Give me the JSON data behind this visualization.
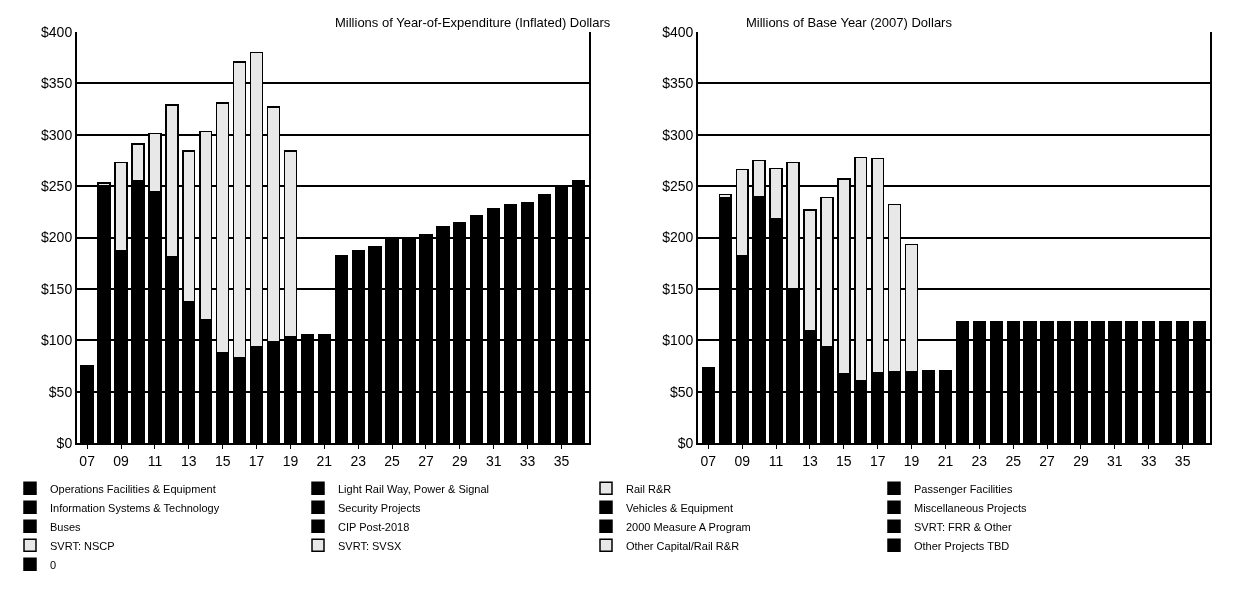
{
  "chart_data": [
    {
      "type": "bar",
      "stacked": true,
      "title": "Millions of Year-of-Expenditure (Inflated) Dollars",
      "categories": [
        "07",
        null,
        "09",
        null,
        "11",
        null,
        "13",
        null,
        "15",
        null,
        "17",
        null,
        "19",
        null,
        "21",
        null,
        "23",
        null,
        "25",
        null,
        "27",
        null,
        "29",
        null,
        "31",
        null,
        "33",
        null,
        "35",
        null
      ],
      "ylim": [
        0,
        400
      ],
      "yticks": [
        {
          "value": 0,
          "label": "$0"
        },
        {
          "value": 50,
          "label": "$50"
        },
        {
          "value": 100,
          "label": "$100"
        },
        {
          "value": 150,
          "label": "$150"
        },
        {
          "value": 200,
          "label": "$200"
        },
        {
          "value": 250,
          "label": "$250"
        },
        {
          "value": 300,
          "label": "$300"
        },
        {
          "value": 350,
          "label": "$350"
        },
        {
          "value": 400,
          "label": "$400"
        }
      ],
      "grid": "y",
      "legend": "bottom",
      "series": [
        {
          "name": "Operations Facilities & Equipment",
          "color": "#000000",
          "values": [
            null,
            null,
            null,
            null,
            null,
            null,
            null,
            null,
            null,
            null,
            null,
            null,
            null,
            null,
            null,
            null,
            null,
            null,
            null,
            null,
            null,
            null,
            null,
            null,
            null,
            null,
            null,
            null,
            null,
            null
          ]
        },
        {
          "name": "Light Rail Way, Power & Signal",
          "color": "#000000",
          "values": [
            null,
            null,
            null,
            null,
            null,
            null,
            null,
            null,
            null,
            null,
            null,
            null,
            null,
            null,
            null,
            null,
            null,
            null,
            null,
            null,
            null,
            null,
            null,
            null,
            null,
            null,
            null,
            null,
            null,
            null
          ]
        },
        {
          "name": "Rail R&R",
          "color": "#e8e8e8",
          "values": [
            null,
            null,
            null,
            null,
            null,
            null,
            null,
            null,
            null,
            null,
            null,
            null,
            null,
            null,
            null,
            null,
            null,
            null,
            null,
            null,
            null,
            null,
            null,
            null,
            null,
            null,
            null,
            null,
            null,
            null
          ]
        },
        {
          "name": "Passenger Facilities",
          "color": "#000000",
          "values": [
            null,
            null,
            null,
            null,
            null,
            null,
            null,
            null,
            null,
            null,
            null,
            null,
            null,
            null,
            null,
            null,
            null,
            null,
            null,
            null,
            null,
            null,
            null,
            null,
            null,
            null,
            null,
            null,
            null,
            null
          ]
        },
        {
          "name": "Information Systems & Technology",
          "color": "#000000",
          "values": [
            null,
            null,
            null,
            null,
            null,
            null,
            null,
            null,
            null,
            null,
            null,
            null,
            null,
            null,
            null,
            null,
            null,
            null,
            null,
            null,
            null,
            null,
            null,
            null,
            null,
            null,
            null,
            null,
            null,
            null
          ]
        },
        {
          "name": "Security Projects",
          "color": "#000000",
          "values": [
            null,
            null,
            null,
            null,
            null,
            null,
            null,
            null,
            null,
            null,
            null,
            null,
            null,
            null,
            null,
            null,
            null,
            null,
            null,
            null,
            null,
            null,
            null,
            null,
            null,
            null,
            null,
            null,
            null,
            null
          ]
        },
        {
          "name": "Vehicles & Equipment",
          "color": "#000000",
          "values": [
            null,
            null,
            null,
            null,
            null,
            null,
            null,
            null,
            null,
            null,
            null,
            null,
            null,
            null,
            null,
            null,
            null,
            null,
            null,
            null,
            null,
            null,
            null,
            null,
            null,
            null,
            null,
            null,
            null,
            null
          ]
        },
        {
          "name": "Miscellaneous Projects",
          "color": "#000000",
          "values": [
            null,
            null,
            null,
            null,
            null,
            null,
            null,
            null,
            null,
            null,
            null,
            null,
            null,
            null,
            null,
            null,
            null,
            null,
            null,
            null,
            null,
            null,
            null,
            null,
            null,
            null,
            null,
            null,
            null,
            null
          ]
        },
        {
          "name": "Buses",
          "color": "#000000",
          "values": [
            null,
            null,
            null,
            null,
            null,
            null,
            null,
            null,
            null,
            null,
            null,
            null,
            null,
            null,
            null,
            null,
            null,
            null,
            null,
            null,
            null,
            null,
            null,
            null,
            null,
            null,
            null,
            null,
            null,
            null
          ]
        },
        {
          "name": "CIP Post-2018",
          "color": "#000000",
          "values": [
            null,
            null,
            null,
            null,
            null,
            null,
            null,
            null,
            null,
            null,
            null,
            null,
            null,
            null,
            null,
            null,
            null,
            null,
            null,
            null,
            null,
            null,
            null,
            null,
            null,
            null,
            null,
            null,
            null,
            null
          ]
        },
        {
          "name": "2000 Measure A Program",
          "color": "#000000",
          "values": [
            75,
            250,
            187,
            255,
            245,
            181,
            137,
            120,
            88,
            83,
            94,
            99,
            103,
            105,
            105,
            182,
            187,
            191,
            198,
            198,
            203,
            210,
            214,
            221,
            228,
            232,
            234,
            242,
            249,
            255
          ]
        },
        {
          "name": "SVRT: FRR & Other",
          "color": "#000000",
          "values": [
            null,
            null,
            null,
            null,
            null,
            null,
            null,
            null,
            null,
            null,
            null,
            null,
            null,
            null,
            null,
            null,
            null,
            null,
            null,
            null,
            null,
            null,
            null,
            null,
            null,
            null,
            null,
            null,
            null,
            null
          ]
        },
        {
          "name": "SVRT: NSCP",
          "color": "#e8e8e8",
          "values": [
            null,
            3,
            86,
            36,
            56,
            148,
            147,
            183,
            243,
            288,
            286,
            228,
            181,
            null,
            null,
            null,
            null,
            null,
            null,
            null,
            null,
            null,
            null,
            null,
            null,
            null,
            null,
            null,
            null,
            null
          ]
        },
        {
          "name": "SVRT: SVSX",
          "color": "#e8e8e8",
          "values": [
            null,
            null,
            null,
            null,
            null,
            null,
            null,
            null,
            null,
            null,
            null,
            null,
            null,
            null,
            null,
            null,
            null,
            null,
            null,
            null,
            null,
            null,
            null,
            null,
            null,
            null,
            null,
            null,
            null,
            null
          ]
        },
        {
          "name": "Other Capital/Rail R&R",
          "color": "#e8e8e8",
          "values": [
            null,
            null,
            null,
            null,
            null,
            null,
            null,
            null,
            null,
            null,
            null,
            null,
            null,
            null,
            null,
            null,
            null,
            null,
            null,
            null,
            null,
            null,
            null,
            null,
            null,
            null,
            null,
            null,
            null,
            null
          ]
        },
        {
          "name": "Other Projects TBD",
          "color": "#000000",
          "values": [
            null,
            null,
            null,
            null,
            null,
            null,
            null,
            null,
            null,
            null,
            null,
            null,
            null,
            null,
            null,
            null,
            null,
            null,
            null,
            null,
            null,
            null,
            null,
            null,
            null,
            null,
            null,
            null,
            null,
            null
          ]
        },
        {
          "name": "0",
          "color": "#000000",
          "values": [
            null,
            null,
            null,
            null,
            null,
            null,
            null,
            null,
            null,
            null,
            null,
            null,
            null,
            null,
            null,
            null,
            null,
            null,
            null,
            null,
            null,
            null,
            null,
            null,
            null,
            null,
            null,
            null,
            null,
            null
          ]
        }
      ]
    },
    {
      "type": "bar",
      "stacked": true,
      "title": "Millions of Base Year (2007) Dollars",
      "categories": [
        "07",
        null,
        "09",
        null,
        "11",
        null,
        "13",
        null,
        "15",
        null,
        "17",
        null,
        "19",
        null,
        "21",
        null,
        "23",
        null,
        "25",
        null,
        "27",
        null,
        "29",
        null,
        "31",
        null,
        "33",
        null,
        "35",
        null
      ],
      "ylim": [
        0,
        400
      ],
      "yticks": [
        {
          "value": 0,
          "label": "$0"
        },
        {
          "value": 50,
          "label": "$50"
        },
        {
          "value": 100,
          "label": "$100"
        },
        {
          "value": 150,
          "label": "$150"
        },
        {
          "value": 200,
          "label": "$200"
        },
        {
          "value": 250,
          "label": "$250"
        },
        {
          "value": 300,
          "label": "$300"
        },
        {
          "value": 350,
          "label": "$350"
        },
        {
          "value": 400,
          "label": "$400"
        }
      ],
      "grid": "y",
      "legend": "bottom",
      "series": [
        {
          "name": "2000 Measure A Program",
          "color": "#000000",
          "values": [
            73,
            239,
            182,
            240,
            218,
            150,
            109,
            94,
            67,
            61,
            68,
            69,
            69,
            70,
            70,
            118,
            118,
            118,
            118,
            118,
            118,
            118,
            118,
            118,
            118,
            118,
            118,
            118,
            118,
            118
          ]
        },
        {
          "name": "SVRT: NSCP",
          "color": "#e8e8e8",
          "values": [
            null,
            3,
            84,
            35,
            49,
            123,
            118,
            145,
            190,
            217,
            209,
            163,
            124,
            null,
            null,
            null,
            null,
            null,
            null,
            null,
            null,
            null,
            null,
            null,
            null,
            null,
            null,
            null,
            null,
            null
          ]
        }
      ]
    }
  ]
}
